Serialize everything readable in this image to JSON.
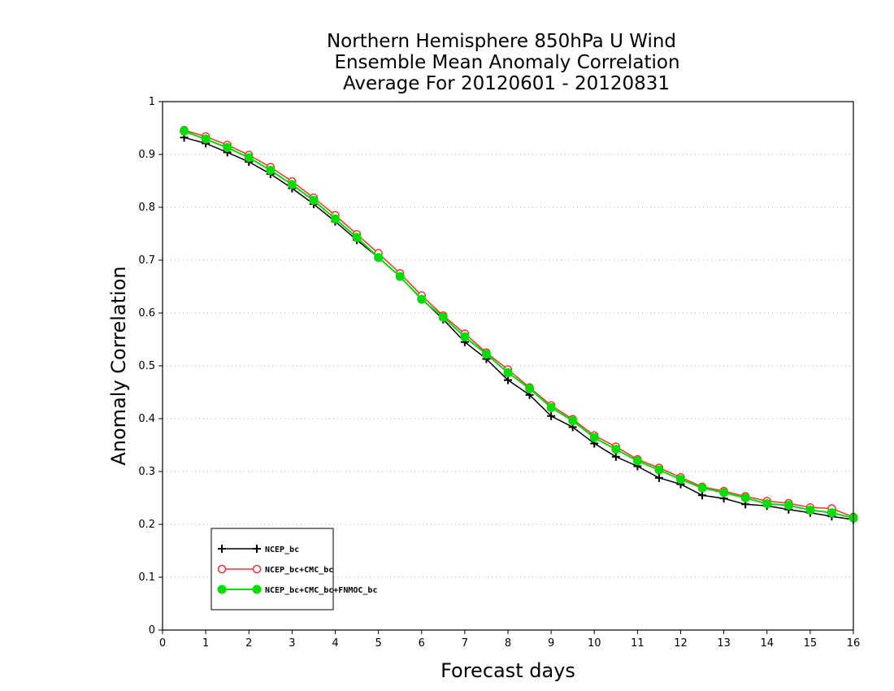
{
  "chart_data": {
    "type": "line",
    "title": [
      "Northern Hemisphere 850hPa U Wind",
      "Ensemble Mean Anomaly Correlation",
      "Average For 20120601 - 20120831"
    ],
    "xlabel": "Forecast days",
    "ylabel": "Anomaly Correlation",
    "xlim": [
      0,
      16
    ],
    "ylim": [
      0,
      1
    ],
    "x_ticks": [
      "0",
      "1",
      "2",
      "3",
      "4",
      "5",
      "6",
      "7",
      "8",
      "9",
      "10",
      "11",
      "12",
      "13",
      "14",
      "15",
      "16"
    ],
    "y_ticks": [
      "0",
      "0.1",
      "0.2",
      "0.3",
      "0.4",
      "0.5",
      "0.6",
      "0.7",
      "0.8",
      "0.9",
      "1"
    ],
    "grid": "horizontal dotted",
    "legend_position": "bottom-left",
    "x": [
      0.5,
      1,
      1.5,
      2,
      2.5,
      3,
      3.5,
      4,
      4.5,
      5,
      5.5,
      6,
      6.5,
      7,
      7.5,
      8,
      8.5,
      9,
      9.5,
      10,
      10.5,
      11,
      11.5,
      12,
      12.5,
      13,
      13.5,
      14,
      14.5,
      15,
      15.5,
      16
    ],
    "series": [
      {
        "name": "NCEP_bc",
        "color": "#000000",
        "marker": "plus",
        "values": [
          0.932,
          0.921,
          0.904,
          0.886,
          0.863,
          0.836,
          0.806,
          0.773,
          0.738,
          0.705,
          0.669,
          0.627,
          0.588,
          0.545,
          0.513,
          0.473,
          0.445,
          0.405,
          0.384,
          0.353,
          0.328,
          0.31,
          0.288,
          0.276,
          0.255,
          0.249,
          0.238,
          0.235,
          0.228,
          0.222,
          0.215,
          0.209
        ]
      },
      {
        "name": "NCEP_bc+CMC_bc",
        "color": "#ee3333",
        "marker": "open-circle",
        "values": [
          0.946,
          0.934,
          0.918,
          0.899,
          0.876,
          0.849,
          0.818,
          0.785,
          0.749,
          0.713,
          0.675,
          0.633,
          0.595,
          0.561,
          0.525,
          0.493,
          0.459,
          0.425,
          0.399,
          0.368,
          0.347,
          0.323,
          0.307,
          0.289,
          0.271,
          0.263,
          0.253,
          0.244,
          0.24,
          0.232,
          0.23,
          0.214
        ]
      },
      {
        "name": "NCEP_bc+CMC_bc+FNMOC_bc",
        "color": "#00dd00",
        "marker": "filled-circle",
        "values": [
          0.944,
          0.929,
          0.913,
          0.894,
          0.87,
          0.843,
          0.813,
          0.778,
          0.743,
          0.705,
          0.669,
          0.626,
          0.592,
          0.555,
          0.522,
          0.487,
          0.457,
          0.421,
          0.396,
          0.364,
          0.342,
          0.32,
          0.303,
          0.285,
          0.269,
          0.26,
          0.25,
          0.239,
          0.236,
          0.227,
          0.222,
          0.212
        ]
      }
    ]
  }
}
